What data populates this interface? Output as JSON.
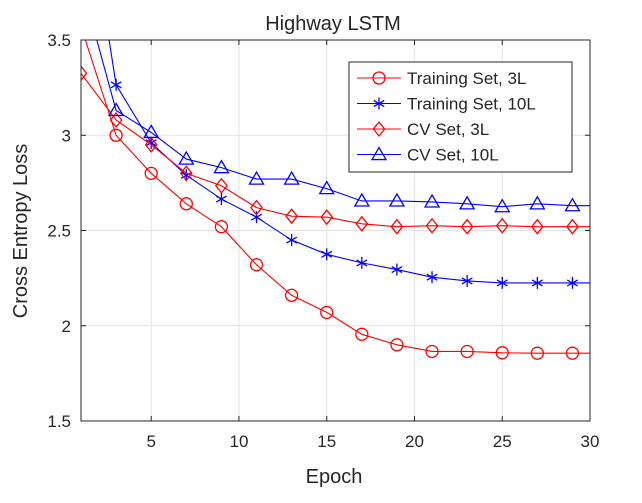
{
  "chart_data": {
    "type": "line",
    "title": "Highway LSTM",
    "xlabel": "Epoch",
    "ylabel": "Cross Entropy Loss",
    "xlim": [
      1,
      30
    ],
    "ylim": [
      1.5,
      3.5
    ],
    "xticks": [
      5,
      10,
      15,
      20,
      25,
      30
    ],
    "xtick_labels": [
      "5",
      "10",
      "15",
      "20",
      "25",
      "30"
    ],
    "yticks": [
      1.5,
      2,
      2.5,
      3,
      3.5
    ],
    "ytick_labels": [
      "1.5",
      "2",
      "2.5",
      "3",
      "3.5"
    ],
    "grid": true,
    "legend_position": "top-right",
    "x": [
      1,
      3,
      5,
      7,
      9,
      11,
      13,
      15,
      17,
      19,
      21,
      23,
      25,
      27,
      29,
      30
    ],
    "series": [
      {
        "name": "Training Set, 3L",
        "color": "#ff0000",
        "marker": "circle",
        "lines": [
          [
            1.25,
            3.5
          ],
          [
            3,
            3.0
          ],
          [
            5,
            2.8
          ],
          [
            7,
            2.64
          ],
          [
            9,
            2.52
          ],
          [
            11,
            2.32
          ],
          [
            13,
            2.16
          ],
          [
            15,
            2.07
          ],
          [
            17,
            1.955
          ],
          [
            19,
            1.9
          ],
          [
            21,
            1.865
          ],
          [
            23,
            1.865
          ],
          [
            25,
            1.858
          ],
          [
            27,
            1.856
          ],
          [
            29,
            1.856
          ],
          [
            30,
            1.856
          ]
        ],
        "marker_points": [
          [
            3,
            3.0
          ],
          [
            5,
            2.8
          ],
          [
            7,
            2.64
          ],
          [
            9,
            2.52
          ],
          [
            11,
            2.32
          ],
          [
            13,
            2.16
          ],
          [
            15,
            2.07
          ],
          [
            17,
            1.955
          ],
          [
            19,
            1.9
          ],
          [
            21,
            1.865
          ],
          [
            23,
            1.865
          ],
          [
            25,
            1.858
          ],
          [
            27,
            1.856
          ],
          [
            29,
            1.856
          ]
        ]
      },
      {
        "name": "Training Set, 10L",
        "color": "#0000ff",
        "marker": "asterisk",
        "lines": [
          [
            2.6,
            3.5
          ],
          [
            3,
            3.265
          ],
          [
            5,
            2.96
          ],
          [
            7,
            2.79
          ],
          [
            9,
            2.665
          ],
          [
            11,
            2.57
          ],
          [
            13,
            2.45
          ],
          [
            15,
            2.375
          ],
          [
            17,
            2.33
          ],
          [
            19,
            2.295
          ],
          [
            21,
            2.255
          ],
          [
            23,
            2.235
          ],
          [
            25,
            2.225
          ],
          [
            27,
            2.225
          ],
          [
            29,
            2.225
          ],
          [
            30,
            2.225
          ]
        ],
        "marker_points": [
          [
            3,
            3.265
          ],
          [
            5,
            2.96
          ],
          [
            7,
            2.79
          ],
          [
            9,
            2.665
          ],
          [
            11,
            2.57
          ],
          [
            13,
            2.45
          ],
          [
            15,
            2.375
          ],
          [
            17,
            2.33
          ],
          [
            19,
            2.295
          ],
          [
            21,
            2.255
          ],
          [
            23,
            2.235
          ],
          [
            25,
            2.225
          ],
          [
            27,
            2.225
          ],
          [
            29,
            2.225
          ]
        ]
      },
      {
        "name": "CV Set, 3L",
        "color": "#ff0000",
        "marker": "diamond",
        "lines": [
          [
            1,
            3.325
          ],
          [
            3,
            3.08
          ],
          [
            5,
            2.95
          ],
          [
            7,
            2.8
          ],
          [
            9,
            2.735
          ],
          [
            11,
            2.62
          ],
          [
            13,
            2.575
          ],
          [
            15,
            2.57
          ],
          [
            17,
            2.535
          ],
          [
            19,
            2.52
          ],
          [
            21,
            2.525
          ],
          [
            23,
            2.52
          ],
          [
            25,
            2.525
          ],
          [
            27,
            2.52
          ],
          [
            29,
            2.52
          ],
          [
            30,
            2.52
          ]
        ],
        "marker_points": [
          [
            1,
            3.325
          ],
          [
            3,
            3.08
          ],
          [
            5,
            2.95
          ],
          [
            7,
            2.8
          ],
          [
            9,
            2.735
          ],
          [
            11,
            2.62
          ],
          [
            13,
            2.575
          ],
          [
            15,
            2.57
          ],
          [
            17,
            2.535
          ],
          [
            19,
            2.52
          ],
          [
            21,
            2.525
          ],
          [
            23,
            2.52
          ],
          [
            25,
            2.525
          ],
          [
            27,
            2.52
          ],
          [
            29,
            2.52
          ]
        ]
      },
      {
        "name": "CV Set, 10L",
        "color": "#0000ff",
        "marker": "triangle",
        "lines": [
          [
            1.9,
            3.5
          ],
          [
            3,
            3.13
          ],
          [
            5,
            3.015
          ],
          [
            7,
            2.875
          ],
          [
            9,
            2.83
          ],
          [
            11,
            2.77
          ],
          [
            13,
            2.77
          ],
          [
            15,
            2.72
          ],
          [
            17,
            2.655
          ],
          [
            19,
            2.655
          ],
          [
            21,
            2.65
          ],
          [
            23,
            2.64
          ],
          [
            25,
            2.625
          ],
          [
            27,
            2.64
          ],
          [
            29,
            2.63
          ],
          [
            30,
            2.63
          ]
        ],
        "marker_points": [
          [
            3,
            3.13
          ],
          [
            5,
            3.015
          ],
          [
            7,
            2.875
          ],
          [
            9,
            2.83
          ],
          [
            11,
            2.77
          ],
          [
            13,
            2.77
          ],
          [
            15,
            2.72
          ],
          [
            17,
            2.655
          ],
          [
            19,
            2.655
          ],
          [
            21,
            2.65
          ],
          [
            23,
            2.64
          ],
          [
            25,
            2.625
          ],
          [
            27,
            2.64
          ],
          [
            29,
            2.63
          ]
        ]
      }
    ]
  }
}
